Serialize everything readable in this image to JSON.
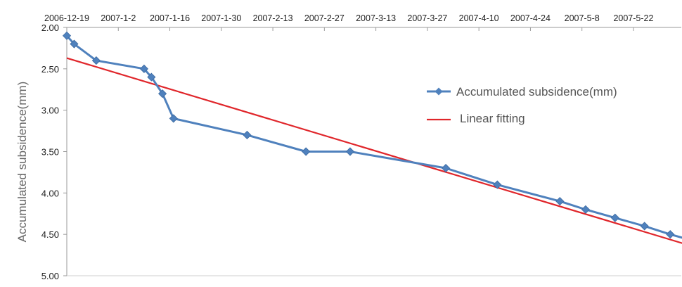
{
  "chart_data": {
    "type": "line",
    "title": "",
    "xlabel": "",
    "ylabel": "Accumulated subsidence(mm)",
    "x_axis_position": "top",
    "y_axis_inverted": true,
    "ylim": [
      2.0,
      5.0
    ],
    "xlim": [
      "2006-12-19",
      "2007-06-04"
    ],
    "x_ticks": [
      "2006-12-19",
      "2007-1-2",
      "2007-1-16",
      "2007-1-30",
      "2007-2-13",
      "2007-2-27",
      "2007-3-13",
      "2007-3-27",
      "2007-4-10",
      "2007-4-24",
      "2007-5-8",
      "2007-5-22"
    ],
    "y_ticks": [
      "2.00",
      "2.50",
      "3.00",
      "3.50",
      "4.00",
      "4.50",
      "5.00"
    ],
    "grid": false,
    "legend": "right",
    "series": [
      {
        "name": "Accumulated subsidence(mm)",
        "color": "#4f81bd",
        "marker": "diamond",
        "x": [
          "2006-12-19",
          "2006-12-21",
          "2006-12-27",
          "2007-01-09",
          "2007-01-11",
          "2007-01-14",
          "2007-01-17",
          "2007-02-06",
          "2007-02-22",
          "2007-03-06",
          "2007-04-01",
          "2007-04-15",
          "2007-05-02",
          "2007-05-09",
          "2007-05-17",
          "2007-05-25",
          "2007-06-01",
          "2007-06-09"
        ],
        "y": [
          2.1,
          2.2,
          2.4,
          2.5,
          2.6,
          2.8,
          3.1,
          3.3,
          3.5,
          3.5,
          3.7,
          3.9,
          4.1,
          4.2,
          4.3,
          4.4,
          4.5,
          4.6
        ]
      },
      {
        "name": "Linear fitting",
        "color": "#e0262b",
        "marker": "none",
        "x": [
          "2006-12-19",
          "2007-06-09"
        ],
        "y": [
          2.37,
          4.67
        ]
      }
    ]
  }
}
